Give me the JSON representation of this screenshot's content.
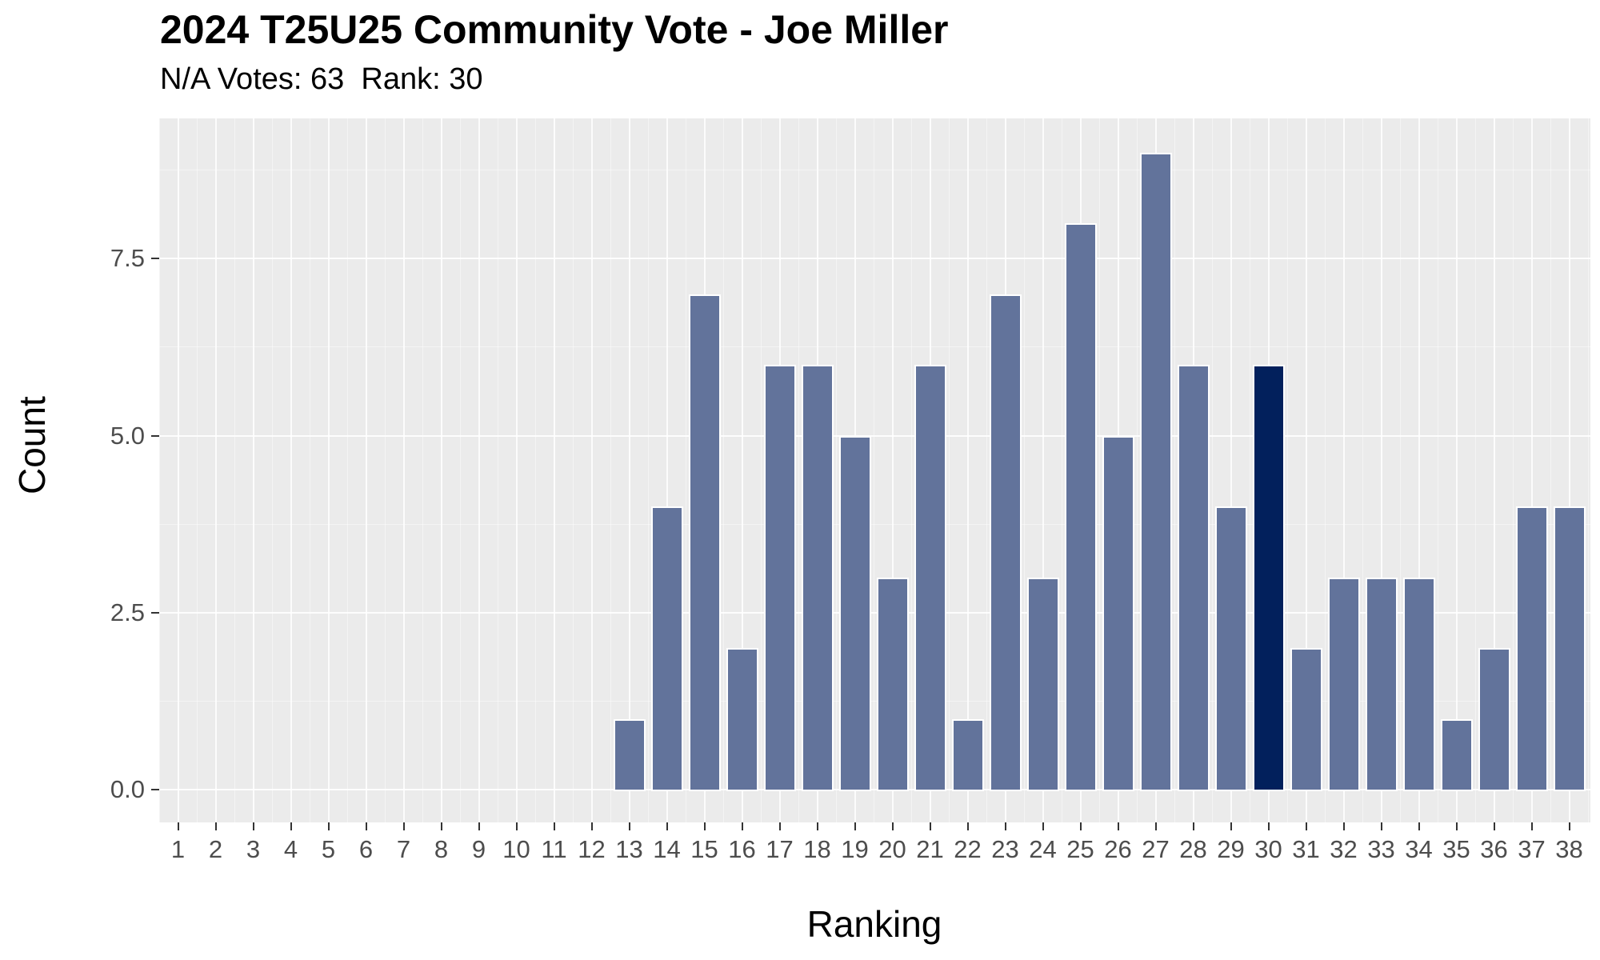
{
  "title": "2024 T25U25 Community Vote - Joe Miller",
  "subtitle": "N/A Votes: 63  Rank: 30",
  "chart_data": {
    "type": "bar",
    "title": "2024 T25U25 Community Vote - Joe Miller",
    "subtitle": "N/A Votes: 63  Rank: 30",
    "na_votes": 63,
    "rank": 30,
    "xlabel": "Ranking",
    "ylabel": "Count",
    "categories": [
      1,
      2,
      3,
      4,
      5,
      6,
      7,
      8,
      9,
      10,
      11,
      12,
      13,
      14,
      15,
      16,
      17,
      18,
      19,
      20,
      21,
      22,
      23,
      24,
      25,
      26,
      27,
      28,
      29,
      30,
      31,
      32,
      33,
      34,
      35,
      36,
      37,
      38
    ],
    "values": [
      0,
      0,
      0,
      0,
      0,
      0,
      0,
      0,
      0,
      0,
      0,
      0,
      1,
      4,
      7,
      2,
      6,
      6,
      5,
      3,
      6,
      1,
      7,
      3,
      8,
      5,
      9,
      6,
      4,
      6,
      2,
      3,
      3,
      3,
      1,
      2,
      4,
      4
    ],
    "highlighted_category": 30,
    "y_ticks": [
      0,
      2.5,
      5,
      7.5
    ],
    "y_tick_labels": [
      "0.0",
      "2.5",
      "5.0",
      "7.5"
    ],
    "y_minor_ticks": [
      1.25,
      3.75,
      6.25,
      8.75
    ],
    "ylim": [
      -0.45,
      9.45
    ],
    "grid": true,
    "legend": false,
    "colors": {
      "bar_fill": "#62739B",
      "bar_highlight_fill": "#02205C",
      "bar_outline": "#FFFFFF",
      "panel_background": "#EBEBEB",
      "grid_major": "#FFFFFF",
      "grid_minor": "#F5F5F5",
      "tick_label": "#4D4D4D",
      "tick_mark": "#333333",
      "text": "#000000"
    }
  }
}
